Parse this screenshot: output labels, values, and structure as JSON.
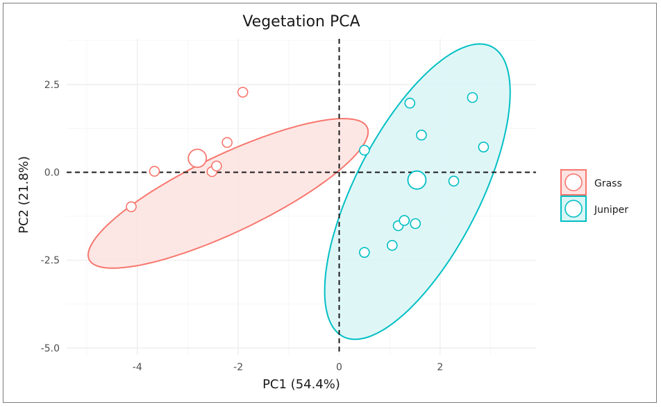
{
  "chart_data": {
    "type": "scatter",
    "title": "Vegetation PCA",
    "xlabel": "PC1 (54.4%)",
    "ylabel": "PC2 (21.8%)",
    "xlim": [
      -5.4,
      3.9
    ],
    "ylim": [
      -5.2,
      3.8
    ],
    "x_ticks": [
      -4,
      -2,
      0,
      2
    ],
    "x_tick_labels": [
      "-4",
      "-2",
      "0",
      "2"
    ],
    "y_ticks": [
      -5.0,
      -2.5,
      0.0,
      2.5
    ],
    "y_tick_labels": [
      "-5.0",
      "-2.5",
      "0.0",
      "2.5"
    ],
    "grid": true,
    "legend_position": "right",
    "reference_lines": {
      "x": 0,
      "y": 0,
      "style": "dashed"
    },
    "series": [
      {
        "name": "Grass",
        "color": "#F8766D",
        "points": [
          {
            "x": -4.12,
            "y": -0.98
          },
          {
            "x": -3.66,
            "y": 0.03
          },
          {
            "x": -2.52,
            "y": 0.02
          },
          {
            "x": -2.43,
            "y": 0.18
          },
          {
            "x": -2.22,
            "y": 0.85
          },
          {
            "x": -1.91,
            "y": 2.28
          }
        ],
        "centroid": {
          "x": -2.81,
          "y": 0.4
        },
        "ellipse": {
          "cx": -2.2,
          "cy": -0.6,
          "rx": 3.35,
          "ry": 1.0,
          "angle_deg": 36
        }
      },
      {
        "name": "Juniper",
        "color": "#00BFC4",
        "points": [
          {
            "x": 0.5,
            "y": 0.63
          },
          {
            "x": 0.5,
            "y": -2.28
          },
          {
            "x": 1.05,
            "y": -2.08
          },
          {
            "x": 1.17,
            "y": -1.52
          },
          {
            "x": 1.29,
            "y": -1.37
          },
          {
            "x": 1.4,
            "y": 1.97
          },
          {
            "x": 1.51,
            "y": -1.46
          },
          {
            "x": 1.63,
            "y": 1.06
          },
          {
            "x": 2.27,
            "y": -0.25
          },
          {
            "x": 2.64,
            "y": 2.13
          },
          {
            "x": 2.86,
            "y": 0.72
          }
        ],
        "centroid": {
          "x": 1.54,
          "y": -0.22
        },
        "ellipse": {
          "cx": 1.55,
          "cy": -0.55,
          "rx": 4.4,
          "ry": 1.3,
          "angle_deg": 72
        }
      }
    ]
  }
}
